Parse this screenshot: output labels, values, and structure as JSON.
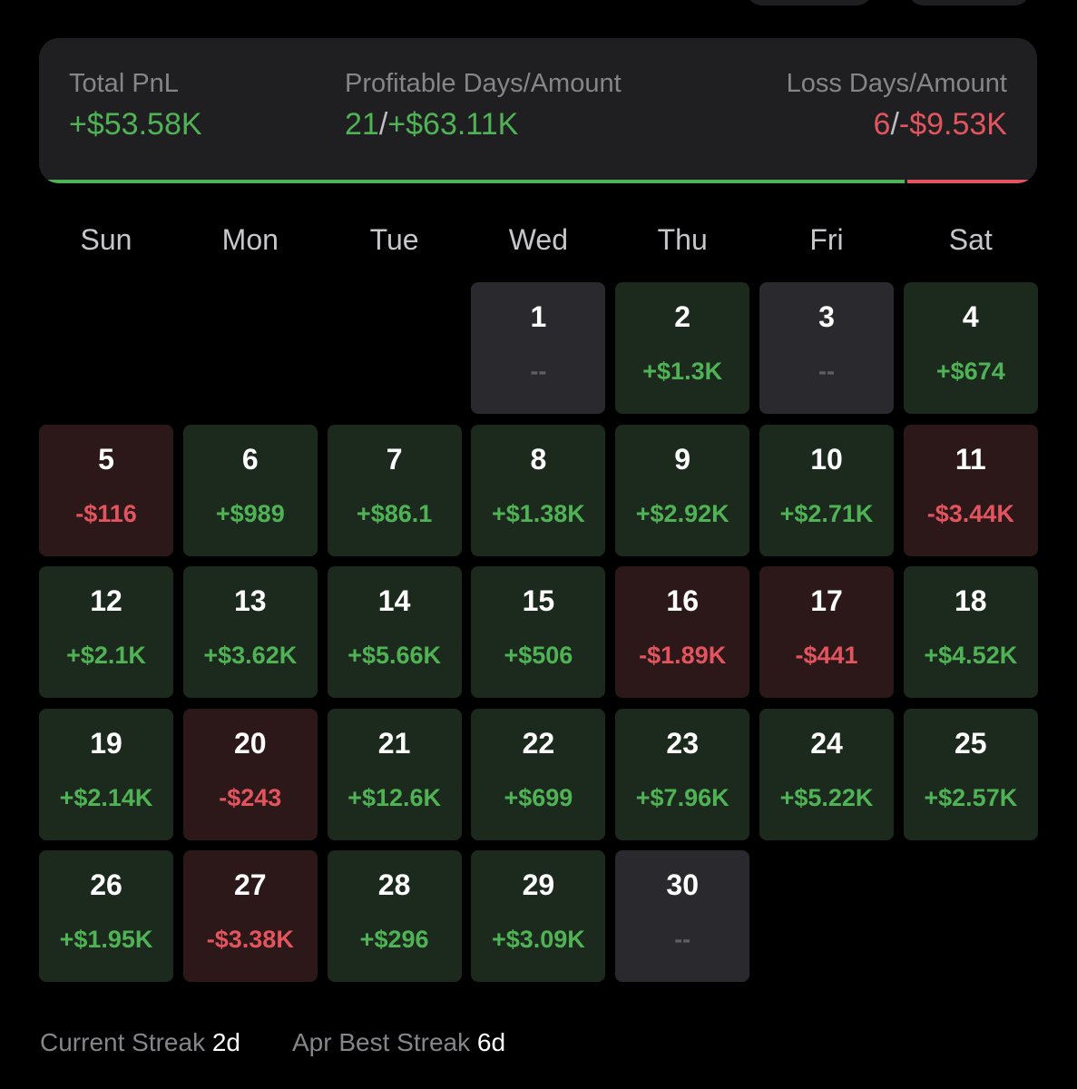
{
  "summary": {
    "total": {
      "label": "Total PnL",
      "value": "+$53.58K"
    },
    "profitable": {
      "label": "Profitable Days/Amount",
      "days": "21",
      "separator": "/",
      "amount": "+$63.11K"
    },
    "loss": {
      "label": "Loss Days/Amount",
      "days": "6",
      "separator": "/",
      "amount": "-$9.53K"
    }
  },
  "calendar": {
    "weekdays": [
      "Sun",
      "Mon",
      "Tue",
      "Wed",
      "Thu",
      "Fri",
      "Sat"
    ],
    "weeks": [
      [
        null,
        null,
        null,
        {
          "day": "1",
          "value": "--",
          "status": "none"
        },
        {
          "day": "2",
          "value": "+$1.3K",
          "status": "profit"
        },
        {
          "day": "3",
          "value": "--",
          "status": "none"
        },
        {
          "day": "4",
          "value": "+$674",
          "status": "profit"
        }
      ],
      [
        {
          "day": "5",
          "value": "-$116",
          "status": "loss"
        },
        {
          "day": "6",
          "value": "+$989",
          "status": "profit"
        },
        {
          "day": "7",
          "value": "+$86.1",
          "status": "profit"
        },
        {
          "day": "8",
          "value": "+$1.38K",
          "status": "profit"
        },
        {
          "day": "9",
          "value": "+$2.92K",
          "status": "profit"
        },
        {
          "day": "10",
          "value": "+$2.71K",
          "status": "profit"
        },
        {
          "day": "11",
          "value": "-$3.44K",
          "status": "loss"
        }
      ],
      [
        {
          "day": "12",
          "value": "+$2.1K",
          "status": "profit"
        },
        {
          "day": "13",
          "value": "+$3.62K",
          "status": "profit"
        },
        {
          "day": "14",
          "value": "+$5.66K",
          "status": "profit"
        },
        {
          "day": "15",
          "value": "+$506",
          "status": "profit"
        },
        {
          "day": "16",
          "value": "-$1.89K",
          "status": "loss"
        },
        {
          "day": "17",
          "value": "-$441",
          "status": "loss"
        },
        {
          "day": "18",
          "value": "+$4.52K",
          "status": "profit"
        }
      ],
      [
        {
          "day": "19",
          "value": "+$2.14K",
          "status": "profit"
        },
        {
          "day": "20",
          "value": "-$243",
          "status": "loss"
        },
        {
          "day": "21",
          "value": "+$12.6K",
          "status": "profit"
        },
        {
          "day": "22",
          "value": "+$699",
          "status": "profit"
        },
        {
          "day": "23",
          "value": "+$7.96K",
          "status": "profit"
        },
        {
          "day": "24",
          "value": "+$5.22K",
          "status": "profit"
        },
        {
          "day": "25",
          "value": "+$2.57K",
          "status": "profit"
        }
      ],
      [
        {
          "day": "26",
          "value": "+$1.95K",
          "status": "profit"
        },
        {
          "day": "27",
          "value": "-$3.38K",
          "status": "loss"
        },
        {
          "day": "28",
          "value": "+$296",
          "status": "profit"
        },
        {
          "day": "29",
          "value": "+$3.09K",
          "status": "profit"
        },
        {
          "day": "30",
          "value": "--",
          "status": "none"
        },
        null,
        null
      ]
    ]
  },
  "footer": {
    "current_streak": {
      "label": "Current Streak",
      "value": "2d"
    },
    "best_streak": {
      "label": "Apr Best Streak",
      "value": "6d"
    }
  }
}
